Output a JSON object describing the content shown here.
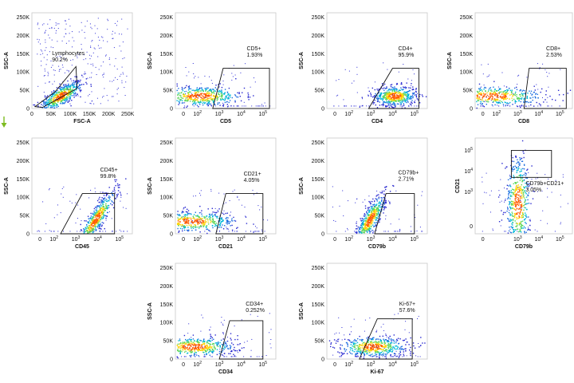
{
  "arrow": {
    "color": "#7dbb20"
  },
  "chart_data": [
    {
      "type": "scatter",
      "id": "lymphocytes",
      "xlabel": "FSC-A",
      "ylabel": "SSC-A",
      "xscale": "linear",
      "xlim": [
        0,
        262144
      ],
      "xticks": [
        "0",
        "50K",
        "100K",
        "150K",
        "200K",
        "250K"
      ],
      "yscale": "linear",
      "ylim": [
        0,
        262144
      ],
      "yticks": [
        "0",
        "50K",
        "100K",
        "150K",
        "200K",
        "250K"
      ],
      "gate": {
        "name": "Lymphocytes",
        "percent": "90.2%",
        "shape": "polygon",
        "vertices": [
          [
            8000,
            5000
          ],
          [
            60000,
            45000
          ],
          [
            115000,
            115000
          ],
          [
            118000,
            55000
          ],
          [
            28000,
            3000
          ]
        ]
      },
      "population": {
        "center": [
          75000,
          35000
        ],
        "spread": [
          28000,
          14000
        ],
        "background": "wide"
      },
      "grid": false
    },
    {
      "type": "scatter",
      "id": "cd5",
      "xlabel": "CD5",
      "ylabel": "SSC-A",
      "xscale": "biexponential",
      "xticks": [
        "0",
        "10^2",
        "10^3",
        "10^4",
        "10^5"
      ],
      "yscale": "linear",
      "ylim": [
        0,
        262144
      ],
      "yticks": [
        "0",
        "50K",
        "100K",
        "150K",
        "200K",
        "250K"
      ],
      "gate": {
        "name": "CD5+",
        "percent": "1.93%",
        "shape": "polygon",
        "vertices": [
          [
            500,
            0
          ],
          [
            200000,
            0
          ],
          [
            200000,
            110000
          ],
          [
            1500,
            110000
          ]
        ]
      },
      "population": {
        "center": [
          120,
          35000
        ],
        "spread": [
          1.0,
          14000
        ],
        "background": "sparse"
      },
      "grid": false
    },
    {
      "type": "scatter",
      "id": "cd4",
      "xlabel": "CD4",
      "ylabel": "SSC-A",
      "xscale": "biexponential",
      "xticks": [
        "0",
        "10^2",
        "10^3",
        "10^4",
        "10^5"
      ],
      "yscale": "linear",
      "ylim": [
        0,
        262144
      ],
      "yticks": [
        "0",
        "50K",
        "100K",
        "150K",
        "200K",
        "250K"
      ],
      "gate": {
        "name": "CD4+",
        "percent": "95.9%",
        "shape": "polygon",
        "vertices": [
          [
            800,
            0
          ],
          [
            160000,
            0
          ],
          [
            160000,
            110000
          ],
          [
            10000,
            110000
          ]
        ]
      },
      "population": {
        "center": [
          12000,
          35000
        ],
        "spread": [
          0.5,
          14000
        ],
        "background": "sparse"
      },
      "grid": false
    },
    {
      "type": "scatter",
      "id": "cd8",
      "xlabel": "CD8",
      "ylabel": "SSC-A",
      "xscale": "biexponential",
      "xticks": [
        "0",
        "10^2",
        "10^3",
        "10^4",
        "10^5"
      ],
      "yscale": "linear",
      "ylim": [
        0,
        262144
      ],
      "yticks": [
        "0",
        "50K",
        "100K",
        "150K",
        "200K",
        "250K"
      ],
      "gate": {
        "name": "CD8+",
        "percent": "2.53%",
        "shape": "polygon",
        "vertices": [
          [
            2000,
            0
          ],
          [
            200000,
            0
          ],
          [
            200000,
            110000
          ],
          [
            3500,
            110000
          ]
        ]
      },
      "population": {
        "center": [
          60,
          35000
        ],
        "spread": [
          1.3,
          14000
        ],
        "background": "sparse"
      },
      "grid": false
    },
    {
      "type": "scatter",
      "id": "cd45",
      "xlabel": "CD45",
      "ylabel": "SSC-A",
      "xscale": "biexponential",
      "xticks": [
        "0",
        "10^2",
        "10^3",
        "10^4",
        "10^5"
      ],
      "yscale": "linear",
      "ylim": [
        0,
        262144
      ],
      "yticks": [
        "0",
        "50K",
        "100K",
        "150K",
        "200K",
        "250K"
      ],
      "gate": {
        "name": "CD45+",
        "percent": "99.8%",
        "shape": "polygon",
        "vertices": [
          [
            200,
            0
          ],
          [
            60000,
            0
          ],
          [
            60000,
            110000
          ],
          [
            2000,
            110000
          ]
        ]
      },
      "population": {
        "center": [
          8000,
          40000
        ],
        "spread": [
          0.45,
          18000
        ],
        "background": "sparse"
      },
      "grid": false
    },
    {
      "type": "scatter",
      "id": "cd21",
      "xlabel": "CD21",
      "ylabel": "SSC-A",
      "xscale": "biexponential",
      "xticks": [
        "0",
        "10^2",
        "10^3",
        "10^4",
        "10^5"
      ],
      "yscale": "linear",
      "ylim": [
        0,
        262144
      ],
      "yticks": [
        "0",
        "50K",
        "100K",
        "150K",
        "200K",
        "250K"
      ],
      "gate": {
        "name": "CD21+",
        "percent": "4.05%",
        "shape": "polygon",
        "vertices": [
          [
            700,
            0
          ],
          [
            100000,
            0
          ],
          [
            100000,
            110000
          ],
          [
            2000,
            110000
          ]
        ]
      },
      "population": {
        "center": [
          50,
          35000
        ],
        "spread": [
          1.1,
          14000
        ],
        "background": "sparse"
      },
      "grid": false
    },
    {
      "type": "scatter",
      "id": "cd79b",
      "xlabel": "CD79b",
      "ylabel": "SSC-A",
      "xscale": "biexponential",
      "xticks": [
        "0",
        "10^2",
        "10^3",
        "10^4",
        "10^5"
      ],
      "yscale": "linear",
      "ylim": [
        0,
        262144
      ],
      "yticks": [
        "0",
        "50K",
        "100K",
        "150K",
        "200K",
        "250K"
      ],
      "gate": {
        "name": "CD79b+",
        "percent": "2.71%",
        "shape": "polygon",
        "vertices": [
          [
            1500,
            0
          ],
          [
            100000,
            0
          ],
          [
            100000,
            110000
          ],
          [
            5000,
            110000
          ]
        ]
      },
      "population": {
        "center": [
          900,
          40000
        ],
        "spread": [
          0.35,
          20000
        ],
        "background": "sparse"
      },
      "grid": false
    },
    {
      "type": "scatter",
      "id": "cd79b_cd21",
      "xlabel": "CD79b",
      "ylabel": "CD21",
      "xscale": "biexponential",
      "xticks": [
        "0",
        "10^3",
        "10^4",
        "10^5"
      ],
      "yscale": "biexponential",
      "yticks": [
        "0",
        "10^3",
        "10^4",
        "10^5"
      ],
      "gate": {
        "name": "CD79b+CD21+",
        "percent": "3.05%",
        "shape": "rectangle",
        "vertices": [
          [
            500,
            5000
          ],
          [
            40000,
            5000
          ],
          [
            40000,
            100000
          ],
          [
            500,
            100000
          ]
        ]
      },
      "population": {
        "center": [
          1000,
          300
        ],
        "spread": [
          0.3,
          1.2
        ],
        "background": "sparse"
      },
      "grid": false
    },
    {
      "type": "scatter",
      "id": "cd34",
      "xlabel": "CD34",
      "ylabel": "SSC-A",
      "xscale": "biexponential",
      "xticks": [
        "0",
        "10^2",
        "10^3",
        "10^4",
        "10^5"
      ],
      "yscale": "linear",
      "ylim": [
        0,
        262144
      ],
      "yticks": [
        "0",
        "50K",
        "100K",
        "150K",
        "200K",
        "250K"
      ],
      "gate": {
        "name": "CD34+",
        "percent": "0.252%",
        "shape": "polygon",
        "vertices": [
          [
            1000,
            0
          ],
          [
            100000,
            0
          ],
          [
            100000,
            105000
          ],
          [
            3000,
            105000
          ]
        ]
      },
      "population": {
        "center": [
          70,
          35000
        ],
        "spread": [
          1.0,
          14000
        ],
        "background": "sparse"
      },
      "grid": false
    },
    {
      "type": "scatter",
      "id": "ki67",
      "xlabel": "Ki-67",
      "ylabel": "SSC-A",
      "xscale": "biexponential",
      "xticks": [
        "0",
        "10^2",
        "10^3",
        "10^4",
        "10^5"
      ],
      "yscale": "linear",
      "ylim": [
        0,
        262144
      ],
      "yticks": [
        "0",
        "50K",
        "100K",
        "150K",
        "200K",
        "250K"
      ],
      "gate": {
        "name": "Ki-67+",
        "percent": "57.6%",
        "shape": "polygon",
        "vertices": [
          [
            300,
            0
          ],
          [
            80000,
            0
          ],
          [
            80000,
            110000
          ],
          [
            2000,
            110000
          ]
        ]
      },
      "population": {
        "center": [
          1200,
          35000
        ],
        "spread": [
          0.8,
          14000
        ],
        "background": "sparse"
      },
      "grid": false
    }
  ]
}
